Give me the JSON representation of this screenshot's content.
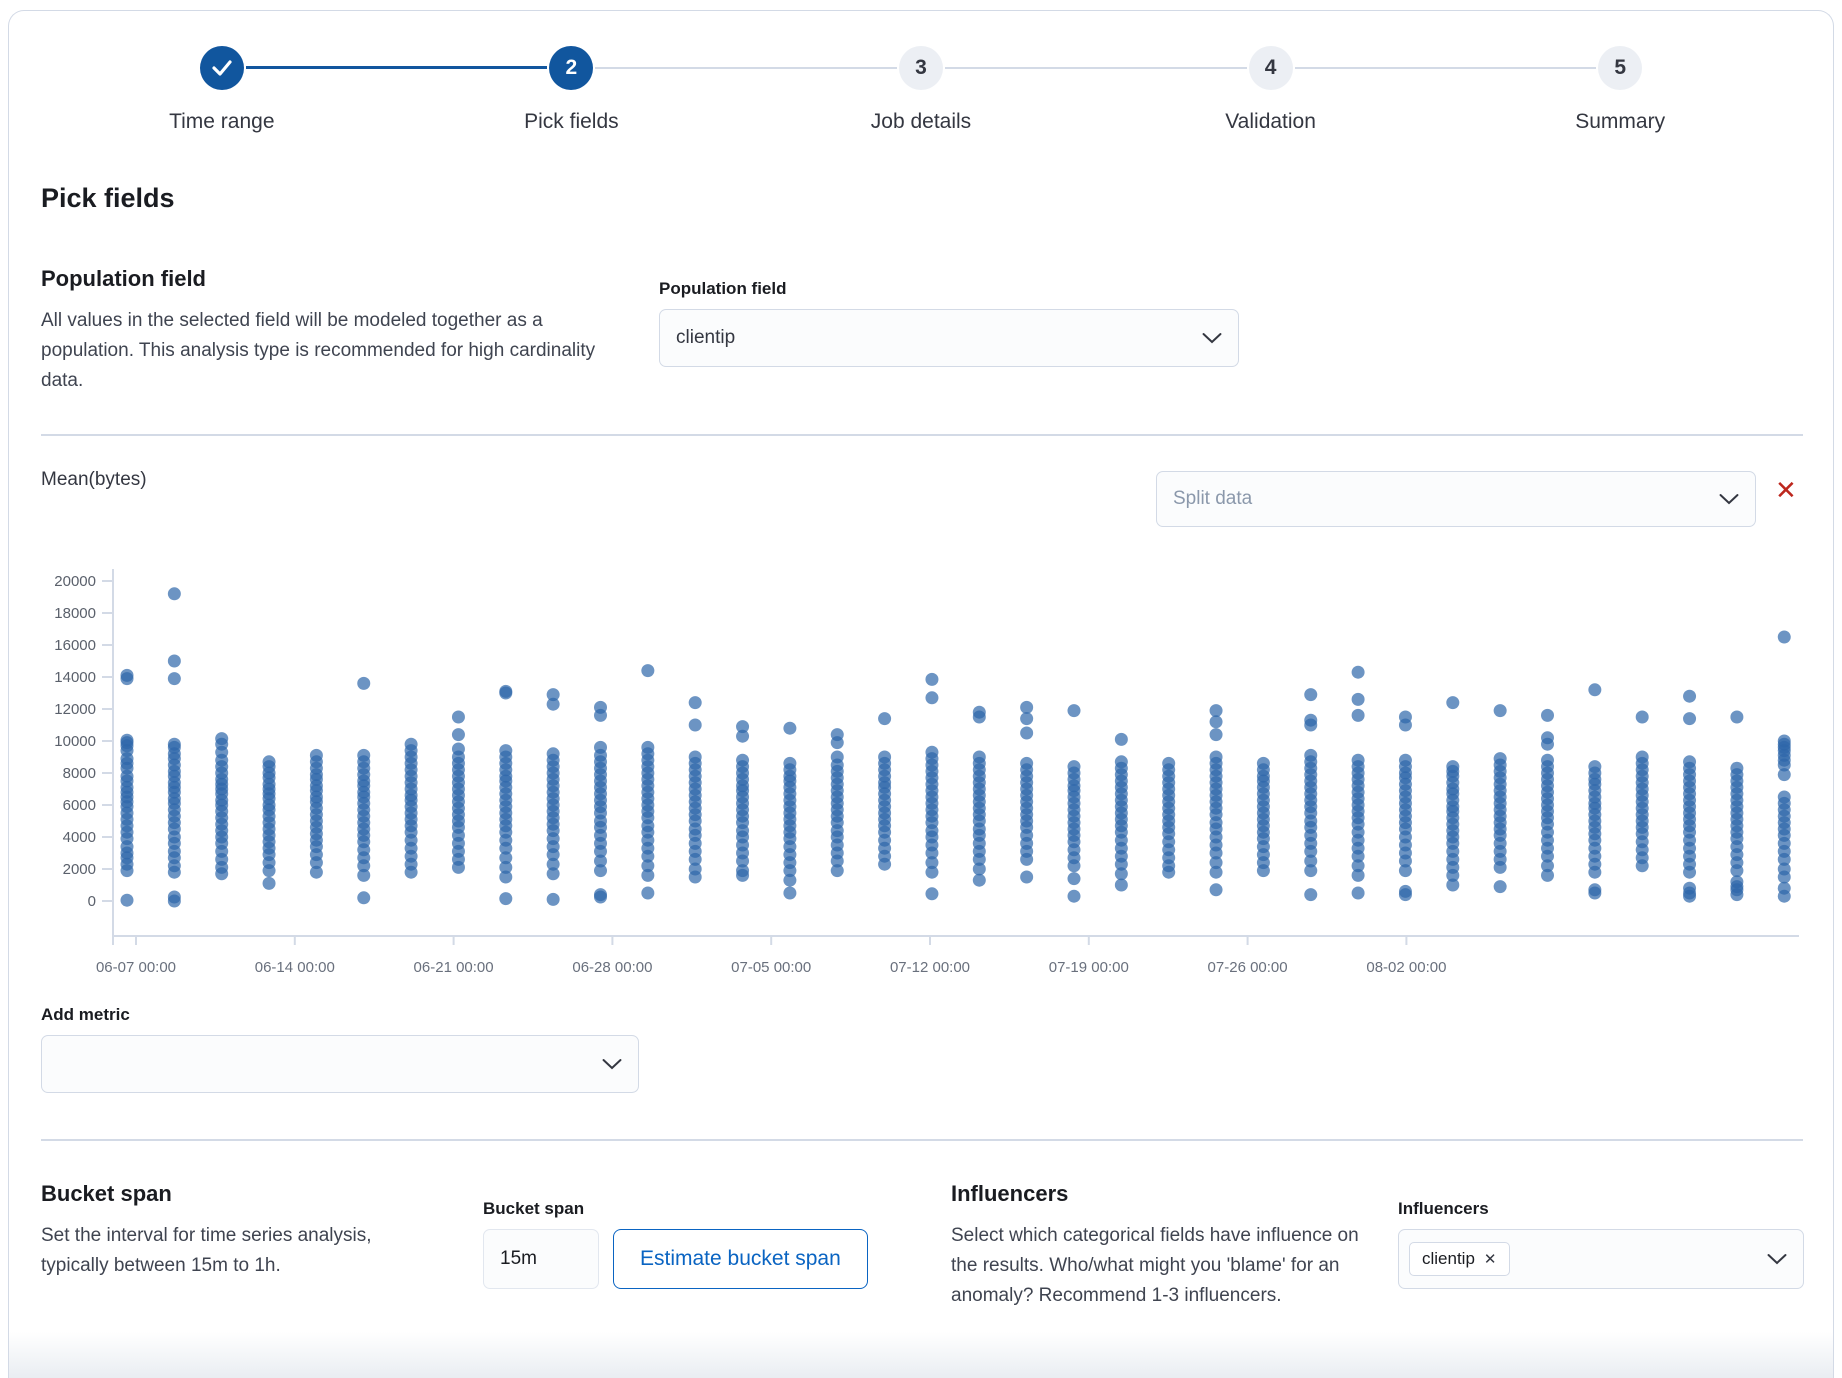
{
  "stepper": {
    "steps": [
      {
        "number": "check",
        "label": "Time range",
        "state": "complete"
      },
      {
        "number": "2",
        "label": "Pick fields",
        "state": "current"
      },
      {
        "number": "3",
        "label": "Job details",
        "state": "incomplete"
      },
      {
        "number": "4",
        "label": "Validation",
        "state": "incomplete"
      },
      {
        "number": "5",
        "label": "Summary",
        "state": "incomplete"
      }
    ]
  },
  "page": {
    "title": "Pick fields"
  },
  "population": {
    "heading": "Population field",
    "description": "All values in the selected field will be modeled together as a population. This analysis type is recommended for high cardinality data.",
    "label": "Population field",
    "value": "clientip"
  },
  "metric": {
    "title": "Mean(bytes)",
    "split_placeholder": "Split data"
  },
  "add_metric": {
    "label": "Add metric"
  },
  "bucket_span": {
    "heading": "Bucket span",
    "description": "Set the interval for time series analysis, typically between 15m to 1h.",
    "label": "Bucket span",
    "value": "15m",
    "estimate_button": "Estimate bucket span"
  },
  "influencers": {
    "heading": "Influencers",
    "description": "Select which categorical fields have influence on the results. Who/what might you 'blame' for an anomaly? Recommend 1-3 influencers.",
    "label": "Influencers",
    "selected": [
      "clientip"
    ]
  },
  "colors": {
    "primary_blue": "#11569e",
    "button_blue": "#0a64c2",
    "danger_red": "#bd271e",
    "border_gray": "#d3dae6"
  },
  "chart_data": {
    "type": "scatter",
    "title": "Mean(bytes)",
    "ylim": [
      0,
      20000
    ],
    "y_ticks": [
      0,
      2000,
      4000,
      6000,
      8000,
      10000,
      12000,
      14000,
      16000,
      18000,
      20000
    ],
    "x_ticks": [
      "06-07 00:00",
      "06-14 00:00",
      "06-21 00:00",
      "06-28 00:00",
      "07-05 00:00",
      "07-12 00:00",
      "07-19 00:00",
      "07-26 00:00",
      "08-02 00:00"
    ],
    "grid": false,
    "legend": "none",
    "point_color": "#2e67aa",
    "point_opacity": 0.7,
    "point_radius": 6.5,
    "columns": [
      [
        14100,
        13900,
        10050,
        9900,
        9700,
        9400,
        8900,
        8600,
        8300,
        7800,
        7500,
        7100,
        6800,
        6500,
        6200,
        5900,
        5500,
        5100,
        4700,
        4300,
        3900,
        3400,
        3000,
        2700,
        2300,
        1900,
        50
      ],
      [
        19200,
        15000,
        13900,
        9800,
        9600,
        9200,
        8900,
        8500,
        8100,
        7800,
        7400,
        7100,
        6800,
        6400,
        6100,
        5700,
        5300,
        4900,
        4500,
        4000,
        3600,
        3100,
        2700,
        2200,
        1800,
        250,
        0
      ],
      [
        10150,
        9800,
        9300,
        8800,
        8400,
        8000,
        7600,
        7300,
        7000,
        6700,
        6300,
        6000,
        5600,
        5200,
        4800,
        4400,
        4000,
        3600,
        3100,
        2600,
        2100,
        1700
      ],
      [
        8700,
        8400,
        8000,
        7700,
        7300,
        7000,
        6700,
        6400,
        6000,
        5700,
        5300,
        4900,
        4500,
        4100,
        3700,
        3300,
        2900,
        2400,
        1900,
        1100
      ],
      [
        9100,
        8700,
        8300,
        7900,
        7600,
        7200,
        6900,
        6500,
        6200,
        5800,
        5400,
        5000,
        4600,
        4200,
        3800,
        3400,
        2900,
        2400,
        1800
      ],
      [
        13600,
        9100,
        8700,
        8300,
        7900,
        7500,
        7200,
        6800,
        6500,
        6100,
        5700,
        5300,
        4900,
        4500,
        4100,
        3700,
        3200,
        2700,
        2200,
        1600,
        200
      ],
      [
        9800,
        9400,
        9000,
        8600,
        8200,
        7800,
        7400,
        7000,
        6600,
        6300,
        5900,
        5500,
        5100,
        4700,
        4300,
        3800,
        3300,
        2800,
        2300,
        1800
      ],
      [
        11500,
        10400,
        9500,
        9000,
        8600,
        8200,
        7800,
        7400,
        7000,
        6600,
        6200,
        5800,
        5400,
        5000,
        4600,
        4100,
        3600,
        3100,
        2600,
        2100
      ],
      [
        13100,
        13000,
        9400,
        9000,
        8600,
        8200,
        7800,
        7500,
        7100,
        6700,
        6300,
        5900,
        5500,
        5100,
        4700,
        4300,
        3800,
        3300,
        2700,
        2100,
        1500,
        150
      ],
      [
        12900,
        12300,
        9200,
        8800,
        8400,
        8000,
        7600,
        7200,
        6800,
        6400,
        6000,
        5600,
        5200,
        4800,
        4400,
        3900,
        3400,
        2900,
        2300,
        1700,
        100
      ],
      [
        12100,
        11600,
        9600,
        9100,
        8700,
        8300,
        7900,
        7500,
        7100,
        6700,
        6300,
        5900,
        5500,
        5000,
        4600,
        4100,
        3600,
        3100,
        2500,
        1900,
        400,
        250
      ],
      [
        14400,
        9600,
        9200,
        8800,
        8400,
        8000,
        7600,
        7200,
        6800,
        6400,
        6000,
        5600,
        5200,
        4700,
        4300,
        3800,
        3300,
        2800,
        2200,
        1600,
        500
      ],
      [
        12400,
        11000,
        9000,
        8600,
        8200,
        7800,
        7400,
        7000,
        6600,
        6200,
        5800,
        5400,
        5000,
        4500,
        4100,
        3600,
        3100,
        2600,
        2000,
        1500
      ],
      [
        10900,
        10300,
        8800,
        8400,
        8000,
        7600,
        7200,
        6900,
        6500,
        6100,
        5700,
        5300,
        4900,
        4400,
        4000,
        3500,
        3000,
        2500,
        1900,
        1600
      ],
      [
        10800,
        8600,
        8200,
        7800,
        7500,
        7100,
        6700,
        6300,
        5900,
        5500,
        5100,
        4700,
        4300,
        3900,
        3400,
        2900,
        2400,
        1900,
        1300,
        500
      ],
      [
        10400,
        9900,
        9000,
        8500,
        8100,
        7700,
        7300,
        6900,
        6500,
        6100,
        5700,
        5300,
        4900,
        4400,
        4000,
        3500,
        3000,
        2500,
        1900
      ],
      [
        11400,
        9000,
        8600,
        8200,
        7800,
        7400,
        7100,
        6700,
        6300,
        5900,
        5500,
        5100,
        4700,
        4300,
        3800,
        3300,
        2800,
        2300
      ],
      [
        13850,
        12700,
        9300,
        8900,
        8500,
        8100,
        7700,
        7300,
        6900,
        6500,
        6100,
        5700,
        5300,
        4900,
        4400,
        4000,
        3500,
        3000,
        2400,
        1800,
        450
      ],
      [
        11800,
        11500,
        9000,
        8600,
        8200,
        7800,
        7400,
        7000,
        6600,
        6200,
        5800,
        5400,
        5000,
        4500,
        4100,
        3600,
        3100,
        2600,
        2000,
        1300
      ],
      [
        12100,
        11400,
        10500,
        8600,
        8200,
        7800,
        7400,
        7000,
        6600,
        6200,
        5800,
        5400,
        5000,
        4600,
        4100,
        3600,
        3100,
        2600,
        1500
      ],
      [
        11900,
        8400,
        8000,
        7600,
        7200,
        6900,
        6500,
        6100,
        5700,
        5300,
        4900,
        4500,
        4100,
        3700,
        3200,
        2700,
        2200,
        1400,
        300
      ],
      [
        10100,
        8700,
        8300,
        7900,
        7500,
        7100,
        6700,
        6300,
        5900,
        5500,
        5100,
        4700,
        4300,
        3800,
        3300,
        2800,
        2300,
        1700,
        1000
      ],
      [
        8600,
        8200,
        7800,
        7400,
        7000,
        6600,
        6200,
        5800,
        5400,
        5000,
        4600,
        4200,
        3700,
        3200,
        2700,
        2200,
        1800
      ],
      [
        11900,
        11200,
        10400,
        9000,
        8600,
        8200,
        7800,
        7400,
        7000,
        6600,
        6200,
        5800,
        5400,
        4900,
        4500,
        4000,
        3500,
        3000,
        2400,
        1800,
        700
      ],
      [
        8600,
        8200,
        7800,
        7500,
        7100,
        6700,
        6300,
        5900,
        5500,
        5100,
        4700,
        4300,
        3900,
        3400,
        2900,
        2400,
        1900
      ],
      [
        12900,
        11300,
        11000,
        9100,
        8700,
        8300,
        7900,
        7500,
        7100,
        6700,
        6300,
        5900,
        5500,
        5000,
        4600,
        4100,
        3600,
        3100,
        2500,
        1900,
        400
      ],
      [
        14300,
        12600,
        11600,
        8800,
        8400,
        8000,
        7600,
        7200,
        6800,
        6400,
        6000,
        5600,
        5200,
        4800,
        4300,
        3800,
        3300,
        2800,
        2200,
        1600,
        500
      ],
      [
        11500,
        11000,
        8800,
        8400,
        8000,
        7700,
        7300,
        6900,
        6500,
        6100,
        5700,
        5300,
        4900,
        4500,
        4000,
        3500,
        3000,
        2500,
        1900,
        600,
        400
      ],
      [
        12400,
        8400,
        8100,
        7800,
        7400,
        7000,
        6700,
        6300,
        5900,
        5600,
        5200,
        4800,
        4400,
        4000,
        3600,
        3100,
        2600,
        2100,
        1600,
        1000
      ],
      [
        11900,
        8900,
        8500,
        8100,
        7700,
        7300,
        6900,
        6500,
        6100,
        5700,
        5300,
        4900,
        4500,
        4100,
        3600,
        3100,
        2600,
        2100,
        900
      ],
      [
        11600,
        10200,
        9800,
        8800,
        8400,
        8000,
        7600,
        7200,
        6800,
        6400,
        6000,
        5600,
        5200,
        4800,
        4300,
        3800,
        3300,
        2800,
        2200,
        1600
      ],
      [
        13200,
        8400,
        8000,
        7600,
        7300,
        6900,
        6500,
        6100,
        5800,
        5400,
        5000,
        4600,
        4200,
        3800,
        3300,
        2800,
        2300,
        1800,
        700,
        500
      ],
      [
        11500,
        9000,
        8600,
        8200,
        7800,
        7400,
        7000,
        6600,
        6200,
        5800,
        5400,
        5000,
        4600,
        4200,
        3700,
        3200,
        2700,
        2200
      ],
      [
        12800,
        11400,
        8700,
        8300,
        7900,
        7500,
        7100,
        6700,
        6300,
        5900,
        5500,
        5100,
        4700,
        4300,
        3800,
        3300,
        2800,
        2300,
        1800,
        800,
        500,
        300
      ],
      [
        11500,
        8300,
        7900,
        7500,
        7100,
        6700,
        6300,
        5900,
        5500,
        5100,
        4700,
        4300,
        3900,
        3400,
        2900,
        2400,
        1900,
        1200,
        900,
        700,
        400
      ],
      [
        16500,
        10000,
        9800,
        9600,
        9400,
        9100,
        8800,
        8500,
        7900,
        6500,
        6100,
        5700,
        5300,
        4900,
        4500,
        4100,
        3600,
        3100,
        2600,
        2000,
        1500,
        800,
        300
      ]
    ]
  }
}
